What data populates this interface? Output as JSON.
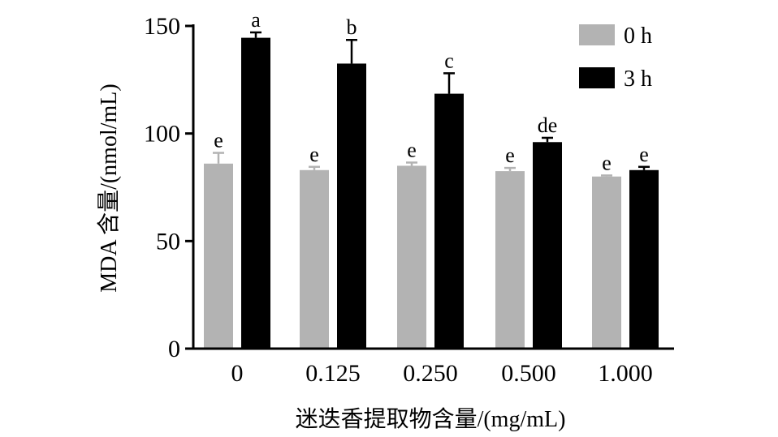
{
  "chart_data": {
    "type": "bar",
    "title": "",
    "xlabel": "迷迭香提取物含量/(mg/mL)",
    "ylabel": "MDA 含量/(nmol/mL)",
    "ylim": [
      0,
      150
    ],
    "yticks": [
      "0",
      "50",
      "100",
      "150"
    ],
    "categories": [
      "0",
      "0.125",
      "0.250",
      "0.500",
      "1.000"
    ],
    "legend_position": "top-right",
    "grid": false,
    "series": [
      {
        "name": "0 h",
        "color": "#b3b3b3",
        "values": [
          86,
          83,
          85,
          82.5,
          80
        ],
        "errors": [
          5,
          1.5,
          1.5,
          1.5,
          0.5
        ],
        "labels": [
          "e",
          "e",
          "e",
          "e",
          "e"
        ]
      },
      {
        "name": "3 h",
        "color": "#000000",
        "values": [
          144.5,
          132.5,
          118.5,
          96,
          83
        ],
        "errors": [
          2.5,
          11,
          9.5,
          2,
          1.5
        ],
        "labels": [
          "a",
          "b",
          "c",
          "de",
          "e"
        ]
      }
    ]
  }
}
